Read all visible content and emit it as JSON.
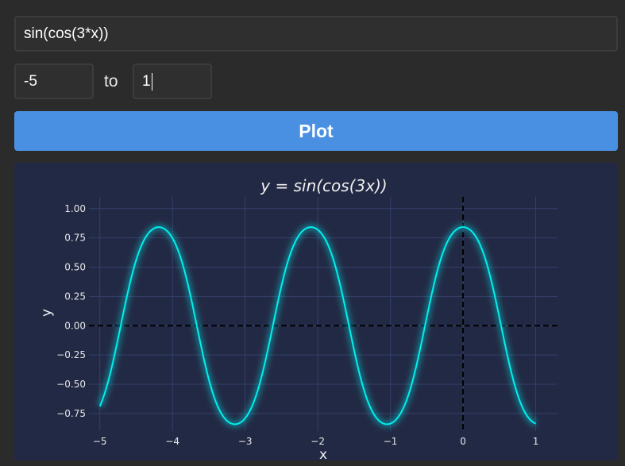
{
  "expression_input": {
    "value": "sin(cos(3*x))"
  },
  "range": {
    "from": "-5",
    "to_label": "to",
    "to": "1"
  },
  "plot_button": {
    "label": "Plot"
  },
  "colors": {
    "accent": "#4a90e2",
    "curve": "#00eeee",
    "chart_bg": "#222944"
  },
  "chart_data": {
    "type": "line",
    "title": "y = sin(cos(3x))",
    "xlabel": "x",
    "ylabel": "y",
    "function": "sin(cos(3*x))",
    "xlim": [
      -5.15,
      1.3
    ],
    "ylim": [
      -0.9,
      1.1
    ],
    "x_range": [
      -5,
      1
    ],
    "x_ticks": [
      -5,
      -4,
      -3,
      -2,
      -1,
      0,
      1
    ],
    "x_tick_labels": [
      "−5",
      "−4",
      "−3",
      "−2",
      "−1",
      "0",
      "1"
    ],
    "y_ticks": [
      1.0,
      0.75,
      0.5,
      0.25,
      0.0,
      -0.25,
      -0.5,
      -0.75
    ],
    "y_tick_labels": [
      "1.00",
      "0.75",
      "0.50",
      "0.25",
      "0.00",
      "−0.25",
      "−0.50",
      "−0.75"
    ],
    "grid": true,
    "reference_lines": [
      "x = 0",
      "y = 0"
    ]
  }
}
